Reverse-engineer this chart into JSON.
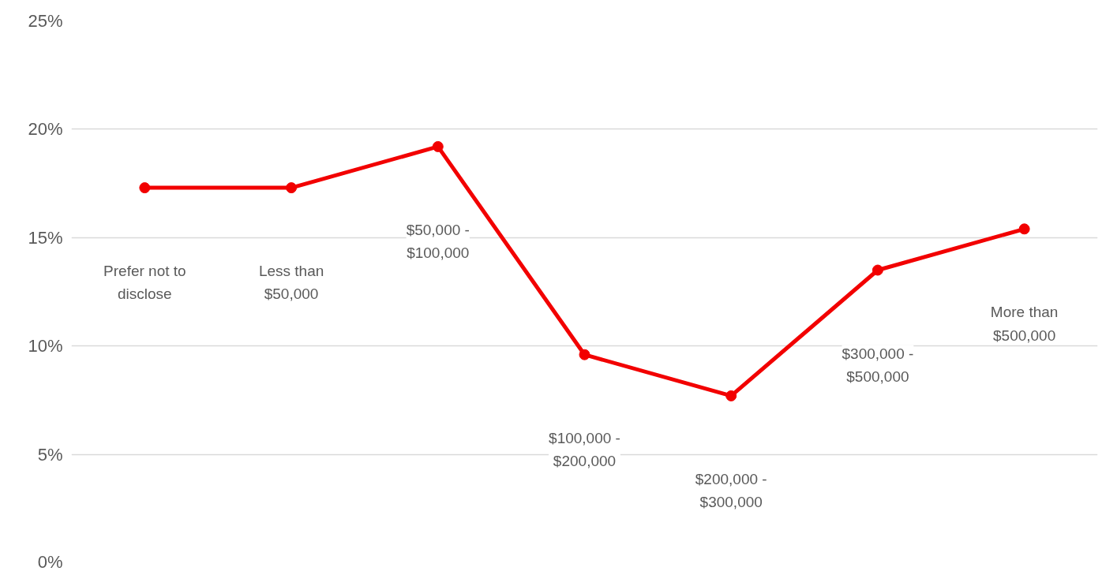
{
  "chart_data": {
    "type": "line",
    "categories": [
      "Prefer not to disclose",
      "Less than $50,000",
      "$50,000 - $100,000",
      "$100,000 - $200,000",
      "$200,000 - $300,000",
      "$300,000 - $500,000",
      "More than $500,000"
    ],
    "series": [
      {
        "color": "#f20000",
        "values": [
          17.3,
          17.3,
          19.2,
          9.6,
          7.7,
          13.5,
          15.4
        ]
      }
    ],
    "ylim": [
      0,
      25
    ],
    "yticks": [
      {
        "value": 0,
        "label": "0%"
      },
      {
        "value": 5,
        "label": "5%"
      },
      {
        "value": 10,
        "label": "10%"
      },
      {
        "value": 15,
        "label": "15%"
      },
      {
        "value": 20,
        "label": "20%"
      },
      {
        "value": 25,
        "label": "25%"
      }
    ],
    "grid": "y",
    "marker": "circle",
    "line_style": "solid"
  }
}
